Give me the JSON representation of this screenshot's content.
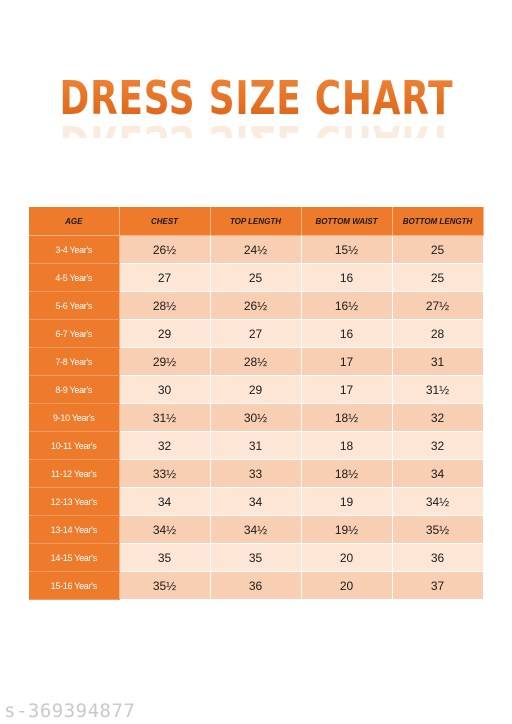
{
  "title": "DRESS SIZE CHART",
  "columns": [
    "AGE",
    "CHEST",
    "TOP LENGTH",
    "BOTTOM WAIST",
    "BOTTOM LENGTH"
  ],
  "rows": [
    {
      "age": "3-4 Year's",
      "chest": "26½",
      "top_length": "24½",
      "bottom_waist": "15½",
      "bottom_length": "25"
    },
    {
      "age": "4-5 Year's",
      "chest": "27",
      "top_length": "25",
      "bottom_waist": "16",
      "bottom_length": "25"
    },
    {
      "age": "5-6 Year's",
      "chest": "28½",
      "top_length": "26½",
      "bottom_waist": "16½",
      "bottom_length": "27½"
    },
    {
      "age": "6-7 Year's",
      "chest": "29",
      "top_length": "27",
      "bottom_waist": "16",
      "bottom_length": "28"
    },
    {
      "age": "7-8 Year's",
      "chest": "29½",
      "top_length": "28½",
      "bottom_waist": "17",
      "bottom_length": "31"
    },
    {
      "age": "8-9 Year's",
      "chest": "30",
      "top_length": "29",
      "bottom_waist": "17",
      "bottom_length": "31½"
    },
    {
      "age": "9-10 Year's",
      "chest": "31½",
      "top_length": "30½",
      "bottom_waist": "18½",
      "bottom_length": "32"
    },
    {
      "age": "10-11 Year's",
      "chest": "32",
      "top_length": "31",
      "bottom_waist": "18",
      "bottom_length": "32"
    },
    {
      "age": "11-12 Year's",
      "chest": "33½",
      "top_length": "33",
      "bottom_waist": "18½",
      "bottom_length": "34"
    },
    {
      "age": "12-13 Year's",
      "chest": "34",
      "top_length": "34",
      "bottom_waist": "19",
      "bottom_length": "34½"
    },
    {
      "age": "13-14 Year's",
      "chest": "34½",
      "top_length": "34½",
      "bottom_waist": "19½",
      "bottom_length": "35½"
    },
    {
      "age": "14-15 Year's",
      "chest": "35",
      "top_length": "35",
      "bottom_waist": "20",
      "bottom_length": "36"
    },
    {
      "age": "15-16 Year's",
      "chest": "35½",
      "top_length": "36",
      "bottom_waist": "20",
      "bottom_length": "37"
    }
  ],
  "watermark": "s-369394877",
  "colors": {
    "accent": "#ee7a2b",
    "row_dark": "#f8cfb2",
    "row_light": "#fde6d6"
  }
}
